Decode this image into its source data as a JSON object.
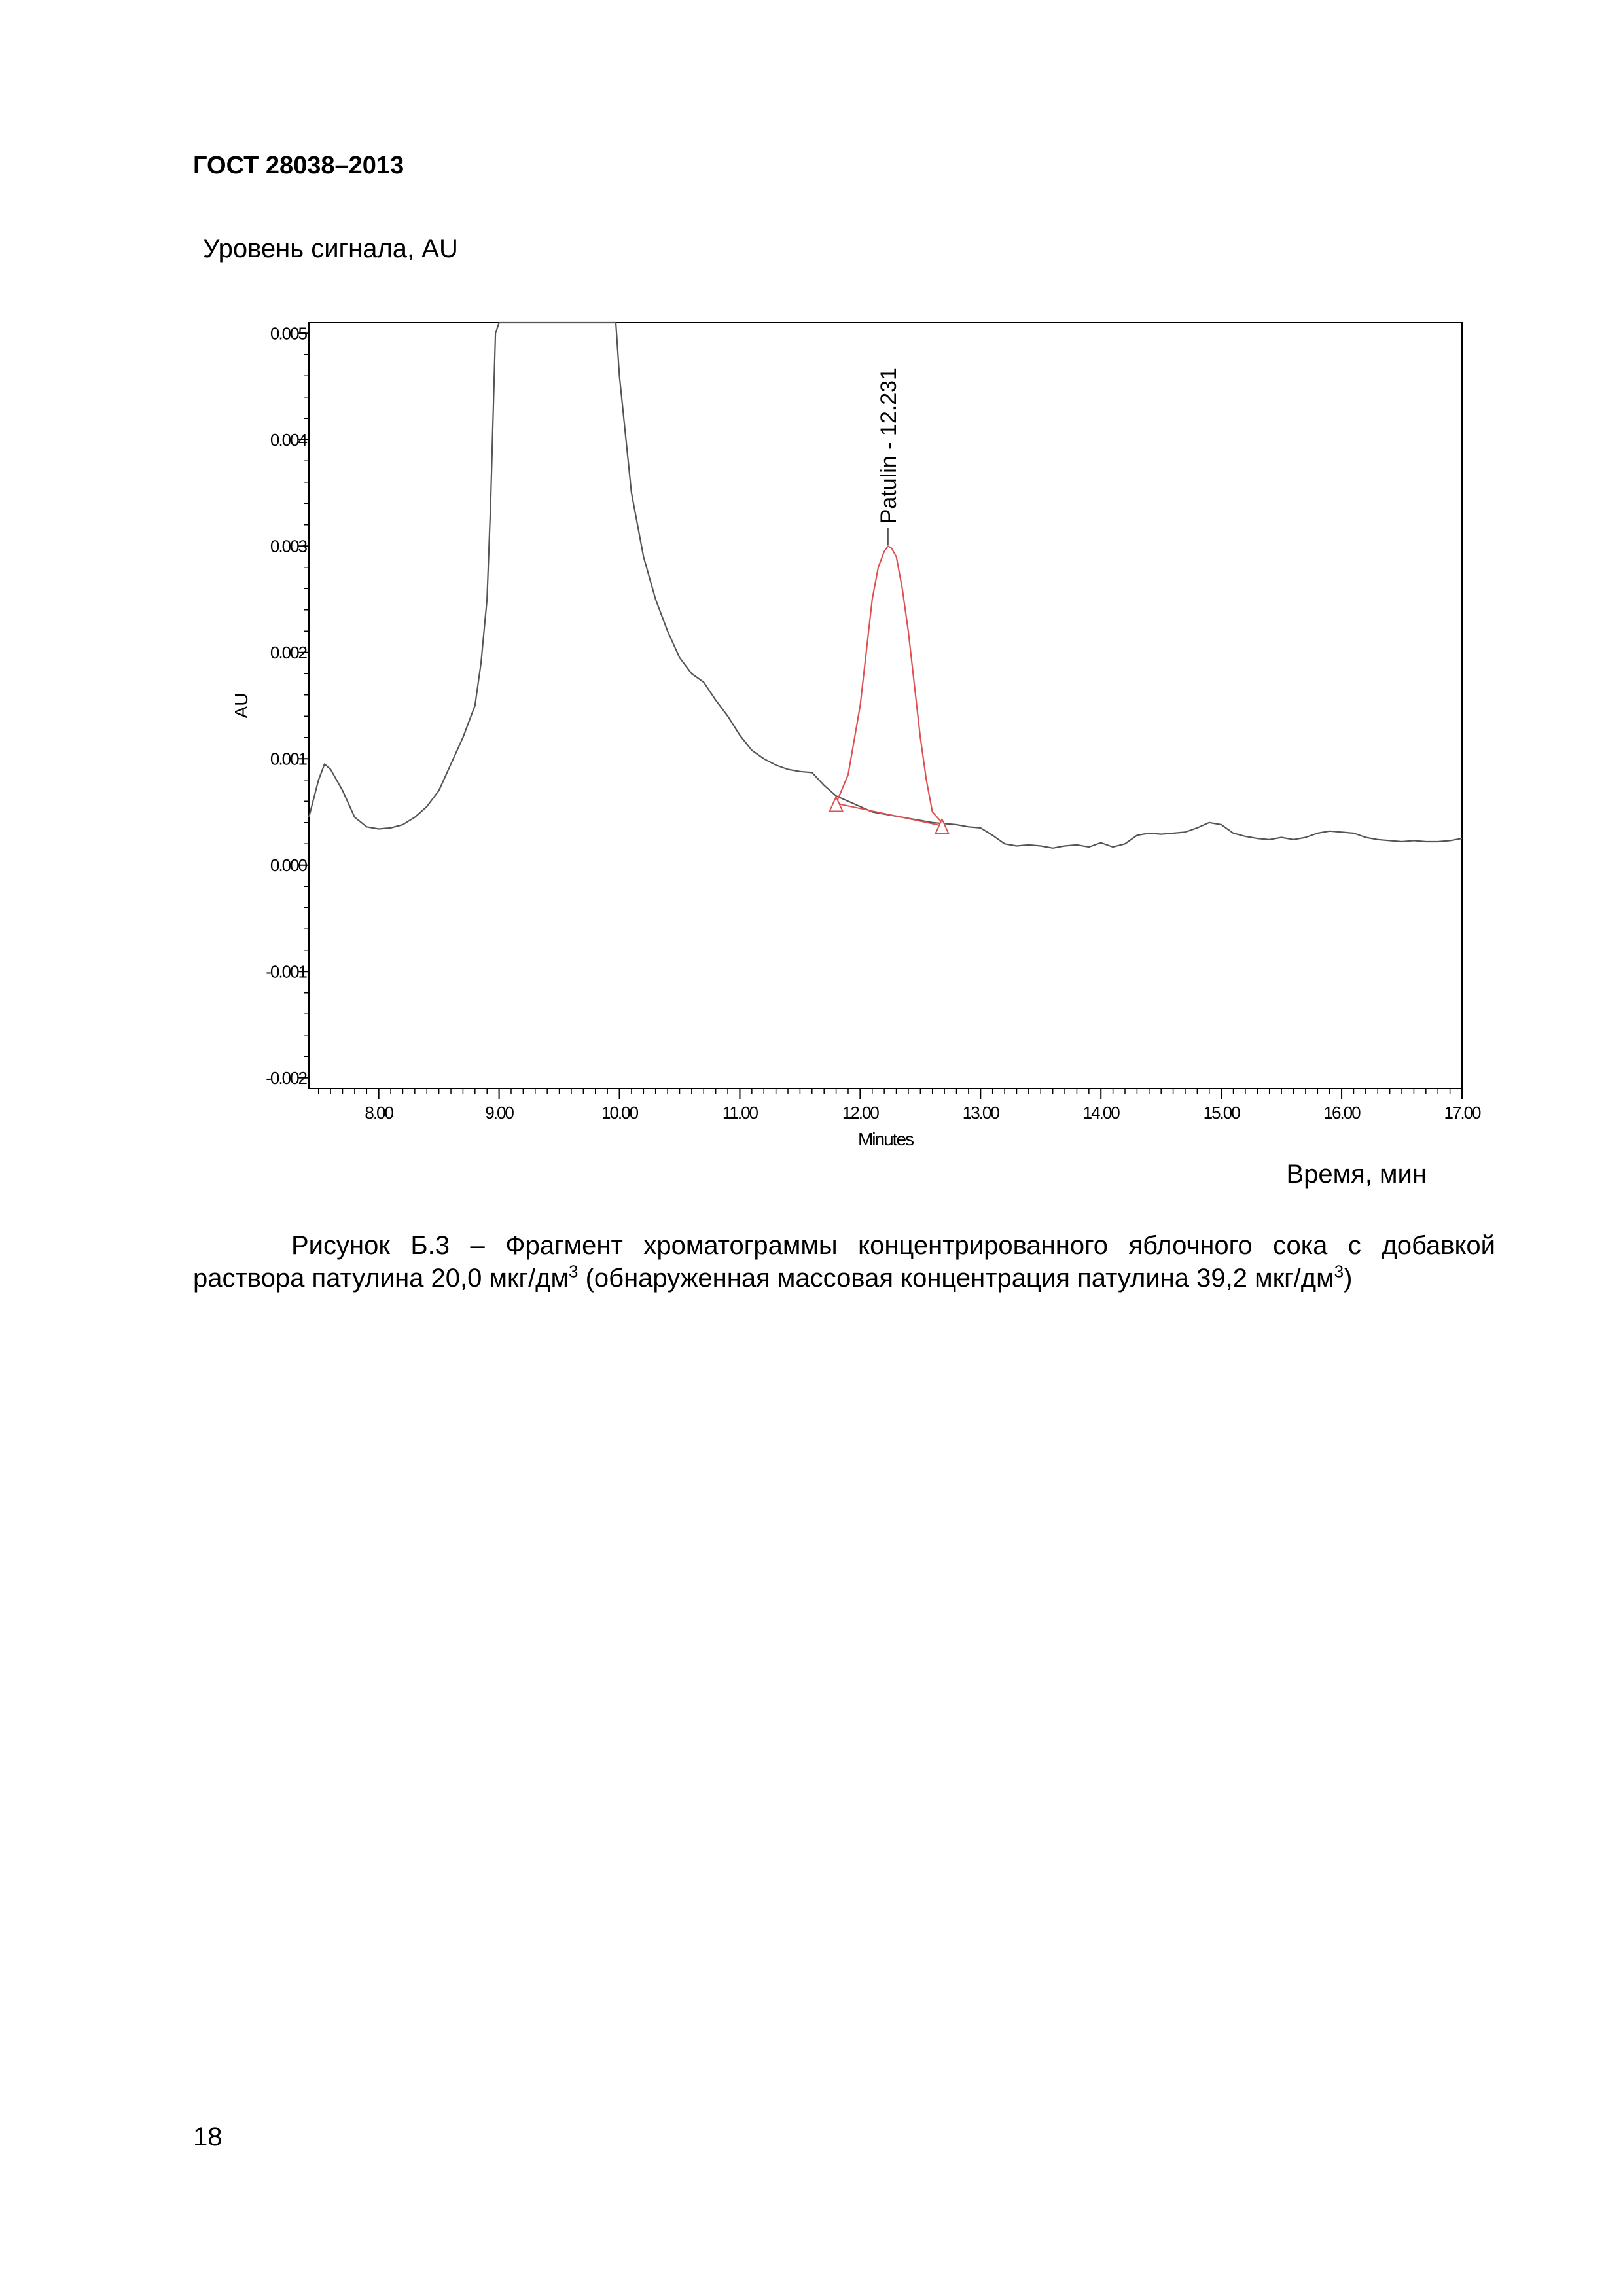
{
  "header": {
    "standard": "ГОСТ 28038–2013"
  },
  "labels": {
    "signal": "Уровень сигнала, AU",
    "time": "Время, мин"
  },
  "caption": {
    "line1": "Рисунок Б.3 – Фрагмент хроматограммы концентрированного яблочного сока с добавкой",
    "line2_a": "раствора патулина 20,0 мкг/дм",
    "sup1": "3",
    "line2_b": " (обнаруженная массовая концентрация патулина 39,2 мкг/дм",
    "sup2": "3",
    "line2_c": ")"
  },
  "page_number": "18",
  "chart_data": {
    "type": "line",
    "xlabel": "Minutes",
    "ylabel": "AU",
    "xlim": [
      7.42,
      17.0
    ],
    "ylim": [
      -0.0021,
      0.0051
    ],
    "x_ticks": [
      "8.00",
      "9.00",
      "10.00",
      "11.00",
      "12.00",
      "13.00",
      "14.00",
      "15.00",
      "16.00",
      "17.00"
    ],
    "y_ticks": [
      "0.005",
      "0.004",
      "0.003",
      "0.002",
      "0.001",
      "0.000",
      "-0.001",
      "-0.002"
    ],
    "grid": false,
    "colors": {
      "trace": "#555555",
      "peak": "#e05050",
      "axis": "#000000"
    },
    "series": [
      {
        "role": "baseline-trace",
        "x": [
          7.42,
          7.5,
          7.55,
          7.6,
          7.7,
          7.8,
          7.9,
          8.0,
          8.1,
          8.2,
          8.3,
          8.4,
          8.5,
          8.6,
          8.7,
          8.8,
          8.85,
          8.9,
          8.93,
          8.95,
          8.97,
          9.0,
          9.97,
          10.0,
          10.1,
          10.2,
          10.3,
          10.4,
          10.5,
          10.6,
          10.7,
          10.8,
          10.9,
          11.0,
          11.1,
          11.2,
          11.3,
          11.4,
          11.5,
          11.6,
          11.7,
          11.8,
          11.9,
          12.0,
          12.1,
          12.2,
          12.3,
          12.4,
          12.5,
          12.6,
          12.7,
          12.8,
          12.9,
          13.0,
          13.1,
          13.2,
          13.3,
          13.4,
          13.5,
          13.6,
          13.7,
          13.8,
          13.9,
          14.0,
          14.1,
          14.2,
          14.3,
          14.4,
          14.5,
          14.6,
          14.7,
          14.8,
          14.9,
          15.0,
          15.1,
          15.2,
          15.3,
          15.4,
          15.5,
          15.6,
          15.7,
          15.8,
          15.9,
          16.0,
          16.1,
          16.2,
          16.3,
          16.4,
          16.5,
          16.6,
          16.7,
          16.8,
          16.9,
          17.0
        ],
        "y": [
          0.00045,
          0.0008,
          0.00095,
          0.0009,
          0.0007,
          0.00045,
          0.00036,
          0.00034,
          0.00035,
          0.00038,
          0.00045,
          0.00055,
          0.0007,
          0.00095,
          0.0012,
          0.0015,
          0.0019,
          0.0025,
          0.0034,
          0.0042,
          0.005,
          0.0051,
          0.0051,
          0.0046,
          0.0035,
          0.0029,
          0.0025,
          0.0022,
          0.00195,
          0.0018,
          0.00172,
          0.00155,
          0.0014,
          0.00122,
          0.00108,
          0.001,
          0.00094,
          0.0009,
          0.00088,
          0.00087,
          0.00075,
          0.00065,
          0.0006,
          0.00055,
          0.0005,
          0.00048,
          0.00046,
          0.00044,
          0.00042,
          0.0004,
          0.00039,
          0.00038,
          0.00036,
          0.00035,
          0.00028,
          0.0002,
          0.00018,
          0.00019,
          0.00018,
          0.00016,
          0.00018,
          0.00019,
          0.00017,
          0.00021,
          0.00017,
          0.0002,
          0.00028,
          0.0003,
          0.00029,
          0.0003,
          0.00031,
          0.00035,
          0.0004,
          0.00038,
          0.0003,
          0.00027,
          0.00025,
          0.00024,
          0.00026,
          0.00024,
          0.00026,
          0.0003,
          0.00032,
          0.00031,
          0.0003,
          0.00026,
          0.00024,
          0.00023,
          0.00022,
          0.00023,
          0.00022,
          0.00022,
          0.00023,
          0.00025
        ]
      },
      {
        "role": "peak",
        "x": [
          11.8,
          11.9,
          12.0,
          12.05,
          12.1,
          12.15,
          12.2,
          12.231,
          12.26,
          12.3,
          12.35,
          12.4,
          12.45,
          12.5,
          12.55,
          12.6,
          12.68
        ],
        "y": [
          0.00058,
          0.00085,
          0.0015,
          0.002,
          0.0025,
          0.0028,
          0.00295,
          0.003,
          0.00298,
          0.0029,
          0.0026,
          0.0022,
          0.0017,
          0.0012,
          0.0008,
          0.0005,
          0.0004
        ]
      }
    ],
    "peak_baseline": {
      "x": [
        11.8,
        12.68
      ],
      "y": [
        0.00058,
        0.00037
      ]
    },
    "annotations": [
      {
        "text": "Patulin - 12.231",
        "x": 12.231,
        "y": 0.003
      }
    ]
  }
}
